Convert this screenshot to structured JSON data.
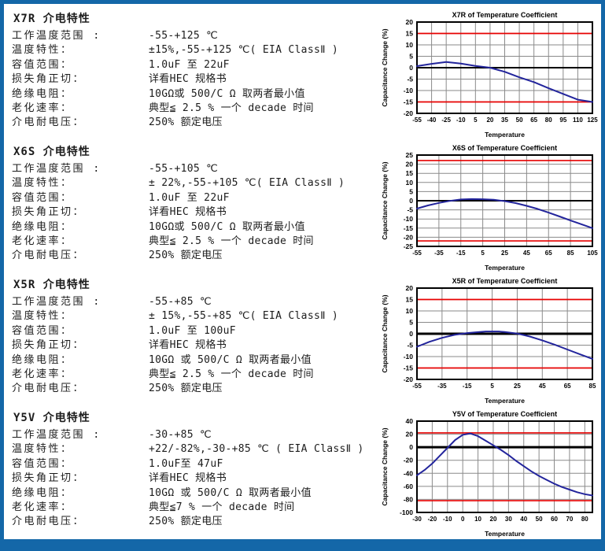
{
  "page": {
    "border_color": "#1467a8",
    "background": "#ffffff"
  },
  "chart_style": {
    "line_color": "#23259c",
    "limit_color": "#e60000",
    "grid_color": "#8a8a8a",
    "axis_color": "#000000",
    "text_color": "#000000"
  },
  "sections": [
    {
      "id": "x7r",
      "title": "X7R 介电特性",
      "rows": [
        {
          "label": "工作温度范围 :",
          "value": "-55-+125 ℃"
        },
        {
          "label": "温度特性：",
          "value": "±15%,-55-+125 ℃( EIA ClassⅡ )"
        },
        {
          "label": "容值范围：",
          "value": "1.0uF 至 22uF"
        },
        {
          "label": "损失角正切：",
          "value": "详看HEC 规格书"
        },
        {
          "label": "绝缘电阻：",
          "value": "10GΩ或 500/C Ω 取两者最小值"
        },
        {
          "label": "老化速率：",
          "value": "典型≦ 2.5 % 一个 decade 时间"
        },
        {
          "label": "介电耐电压：",
          "value": "250% 额定电压"
        }
      ]
    },
    {
      "id": "x6s",
      "title": "X6S 介电特性",
      "rows": [
        {
          "label": "工作温度范围 :",
          "value": "-55-+105 ℃"
        },
        {
          "label": "温度特性：",
          "value": "± 22%,-55-+105 ℃( EIA ClassⅡ )"
        },
        {
          "label": "容值范围：",
          "value": "1.0uF 至 22uF"
        },
        {
          "label": "损失角正切：",
          "value": "详看HEC 规格书"
        },
        {
          "label": "绝缘电阻：",
          "value": "10GΩ或 500/C Ω 取两者最小值"
        },
        {
          "label": "老化速率：",
          "value": "典型≦ 2.5 % 一个 decade 时间"
        },
        {
          "label": "介电耐电压：",
          "value": "250% 额定电压"
        }
      ]
    },
    {
      "id": "x5r",
      "title": "X5R 介电特性",
      "rows": [
        {
          "label": "工作温度范围 :",
          "value": "-55-+85 ℃"
        },
        {
          "label": "温度特性：",
          "value": "± 15%,-55-+85 ℃( EIA ClassⅡ )"
        },
        {
          "label": "容值范围：",
          "value": "1.0uF 至 100uF"
        },
        {
          "label": "损失角正切：",
          "value": "详看HEC 规格书"
        },
        {
          "label": "绝缘电阻：",
          "value": "10GΩ  或 500/C Ω 取两者最小值"
        },
        {
          "label": "老化速率：",
          "value": "典型≦ 2.5 % 一个 decade 时间"
        },
        {
          "label": "介电耐电压：",
          "value": "250% 额定电压"
        }
      ]
    },
    {
      "id": "y5v",
      "title": "Y5V 介电特性",
      "rows": [
        {
          "label": "工作温度范围 :",
          "value": "-30-+85 ℃"
        },
        {
          "label": "温度特性：",
          "value": "+22/-82%,-30-+85 ℃ ( EIA ClassⅡ )"
        },
        {
          "label": "容值范围：",
          "value": "1.0uF至 47uF"
        },
        {
          "label": "损失角正切：",
          "value": "详看HEC 规格书"
        },
        {
          "label": "绝缘电阻：",
          "value": "10GΩ  或 500/C Ω 取两者最小值"
        },
        {
          "label": "老化速率：",
          "value": "典型≦7 % 一个 decade 时间"
        },
        {
          "label": "介电耐电压：",
          "value": "250% 额定电压"
        }
      ]
    }
  ],
  "chart_data": [
    {
      "type": "line",
      "title": "X7R of Temperature Coefficient",
      "xlabel": "Temperature",
      "ylabel": "Capacitance Change (%)",
      "xlim": [
        -55,
        125
      ],
      "ylim": [
        -20,
        20
      ],
      "xticks": [
        -55,
        -40,
        -25,
        -10,
        5,
        20,
        35,
        50,
        65,
        80,
        95,
        110,
        125
      ],
      "yticks": [
        -20,
        -15,
        -10,
        -5,
        0,
        5,
        10,
        15,
        20
      ],
      "limit_lines": [
        15,
        -15
      ],
      "zero_line_width": 2,
      "grid": true,
      "series": [
        {
          "name": "X7R",
          "x": [
            -55,
            -40,
            -25,
            -10,
            5,
            20,
            35,
            50,
            65,
            80,
            95,
            110,
            125
          ],
          "y": [
            0.7,
            1.7,
            2.5,
            1.8,
            0.8,
            0,
            -1.8,
            -4.2,
            -6.3,
            -9,
            -11.5,
            -14,
            -15
          ]
        }
      ]
    },
    {
      "type": "line",
      "title": "X6S of Temperature Coefficient",
      "xlabel": "Temperature",
      "ylabel": "Capacitance Change (%)",
      "xlim": [
        -55,
        105
      ],
      "ylim": [
        -25,
        25
      ],
      "xticks": [
        -55,
        -35,
        -15,
        5,
        25,
        45,
        65,
        85,
        105
      ],
      "yticks": [
        -25,
        -20,
        -15,
        -10,
        -5,
        0,
        5,
        10,
        15,
        20,
        25
      ],
      "limit_lines": [
        22,
        -22
      ],
      "zero_line_width": 2,
      "grid": true,
      "series": [
        {
          "name": "X6S",
          "x": [
            -55,
            -45,
            -35,
            -25,
            -15,
            -5,
            5,
            15,
            25,
            35,
            45,
            55,
            65,
            75,
            85,
            95,
            105
          ],
          "y": [
            -4.3,
            -2.6,
            -1.2,
            -0.1,
            0.7,
            0.9,
            0.8,
            0.5,
            -0.2,
            -1.3,
            -2.8,
            -4.5,
            -6.5,
            -8.6,
            -10.8,
            -12.9,
            -15
          ]
        }
      ]
    },
    {
      "type": "line",
      "title": "X5R of  Temperature Coefficient",
      "xlabel": "Temperature",
      "ylabel": "Capacitance Change (%)",
      "xlim": [
        -55,
        85
      ],
      "ylim": [
        -20,
        20
      ],
      "xticks": [
        -55,
        -35,
        -15,
        5,
        25,
        45,
        65,
        85
      ],
      "yticks": [
        -20,
        -15,
        -10,
        -5,
        0,
        5,
        10,
        15,
        20
      ],
      "limit_lines": [
        15,
        -15
      ],
      "zero_line_width": 3,
      "grid": true,
      "series": [
        {
          "name": "X5R",
          "x": [
            -55,
            -45,
            -35,
            -25,
            -15,
            -5,
            0,
            5,
            10,
            15,
            25,
            35,
            45,
            55,
            65,
            75,
            85
          ],
          "y": [
            -5.7,
            -3.5,
            -1.8,
            -0.5,
            0.3,
            0.8,
            1,
            1,
            1,
            0.8,
            0.1,
            -1.2,
            -2.9,
            -4.8,
            -6.9,
            -9,
            -11
          ]
        }
      ]
    },
    {
      "type": "line",
      "title": "Y5V of  Temperature Coefficient",
      "xlabel": "Temperature",
      "ylabel": "Capacitance Change (%)",
      "xlim": [
        -30,
        85
      ],
      "ylim": [
        -100,
        40
      ],
      "xticks": [
        -30,
        -20,
        -10,
        0,
        10,
        20,
        30,
        40,
        50,
        60,
        70,
        80
      ],
      "yticks": [
        -100,
        -80,
        -60,
        -40,
        -20,
        0,
        20,
        40
      ],
      "limit_lines": [
        22,
        -82
      ],
      "zero_line_width": 3,
      "grid": true,
      "series": [
        {
          "name": "Y5V",
          "x": [
            -30,
            -25,
            -20,
            -15,
            -10,
            -5,
            0,
            5,
            10,
            15,
            20,
            25,
            30,
            35,
            40,
            45,
            50,
            55,
            60,
            65,
            70,
            75,
            80,
            85
          ],
          "y": [
            -43,
            -35,
            -25,
            -13,
            -1,
            11,
            19,
            21,
            17,
            10,
            3,
            -4,
            -12,
            -21,
            -29,
            -37,
            -44,
            -50,
            -56,
            -61,
            -65,
            -69,
            -72,
            -74
          ]
        }
      ]
    }
  ]
}
